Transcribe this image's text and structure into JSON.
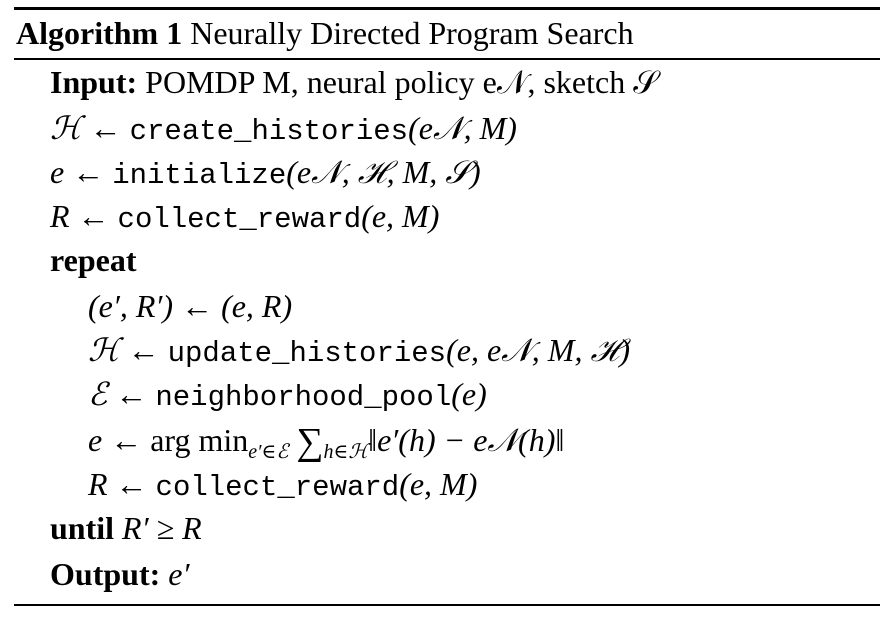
{
  "algorithm": {
    "label": "Algorithm 1",
    "title": "Neurally Directed Program Search"
  },
  "lines": [
    {
      "keyword": "Input:",
      "text": "POMDP M, neural policy e𝒩, sketch 𝒮"
    },
    {
      "lhs": "ℋ ←",
      "func": "create_histories",
      "args": "(e𝒩, M)"
    },
    {
      "lhs": "e ←",
      "func": "initialize",
      "args": "(e𝒩, ℋ, M, 𝒮)"
    },
    {
      "lhs": "R ←",
      "func": "collect_reward",
      "args": "(e, M)"
    },
    {
      "keyword": "repeat"
    },
    {
      "text": "(e′, R′) ← (e, R)"
    },
    {
      "lhs": "ℋ ←",
      "func": "update_histories",
      "args": "(e, e𝒩, M, ℋ)"
    },
    {
      "lhs": "ℰ ←",
      "func": "neighborhood_pool",
      "args": "(e)"
    },
    {
      "lhs": "e ←",
      "text": "arg min",
      "sub": "e′∈ℰ",
      "sum": "∑",
      "sum_sub": "h∈ℋ",
      "tail": "‖e′(h) − e𝒩(h)‖"
    },
    {
      "lhs": "R ←",
      "func": "collect_reward",
      "args": "(e, M)"
    },
    {
      "keyword": "until",
      "text": "R′ ≥ R"
    },
    {
      "keyword": "Output:",
      "text": "e′"
    }
  ]
}
